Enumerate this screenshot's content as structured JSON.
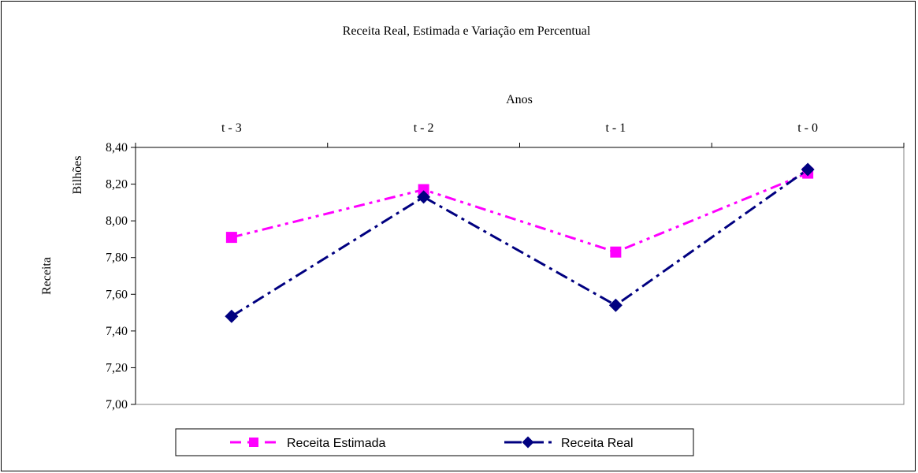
{
  "chart_data": {
    "type": "line",
    "title": "Receita Real, Estimada e Variação em Percentual",
    "x_axis_title": "Anos",
    "y_axis_title": "Receita",
    "y_axis_unit": "Bilhões",
    "categories": [
      "t - 3",
      "t - 2",
      "t - 1",
      "t - 0"
    ],
    "ylim": [
      7.0,
      8.4
    ],
    "y_ticks": [
      "7,00",
      "7,20",
      "7,40",
      "7,60",
      "7,80",
      "8,00",
      "8,20",
      "8,40"
    ],
    "x_axis_position": "top",
    "grid": false,
    "legend_position": "bottom",
    "series": [
      {
        "name": "Receita Estimada",
        "values": [
          7.91,
          8.17,
          7.83,
          8.26
        ],
        "color": "#ff00ff",
        "marker": "square",
        "line_style": "dash-dot-dot"
      },
      {
        "name": "Receita Real",
        "values": [
          7.48,
          8.13,
          7.54,
          8.28
        ],
        "color": "#000080",
        "marker": "diamond",
        "line_style": "dash-dot"
      }
    ]
  }
}
